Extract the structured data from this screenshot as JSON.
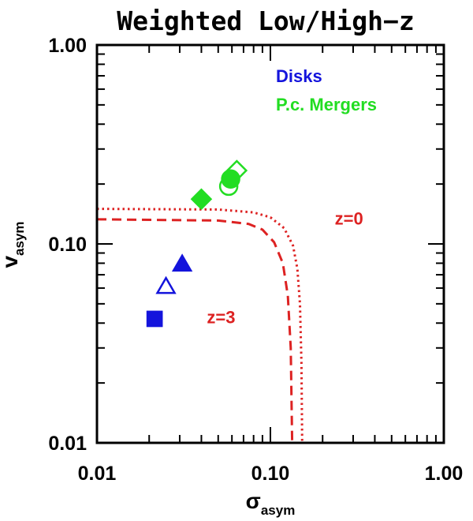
{
  "chart_data": {
    "type": "scatter",
    "title": "Weighted Low/High−z",
    "xlabel": {
      "symbol": "σ",
      "subscript": "asym"
    },
    "ylabel": {
      "symbol": "v",
      "subscript": "asym"
    },
    "x_scale": "log",
    "y_scale": "log",
    "xlim": [
      0.01,
      1.0
    ],
    "ylim": [
      0.01,
      1.0
    ],
    "x_tick_labels": [
      {
        "value": 0.01,
        "label": "0.01"
      },
      {
        "value": 0.1,
        "label": "0.10"
      },
      {
        "value": 1.0,
        "label": "1.00"
      }
    ],
    "y_tick_labels": [
      {
        "value": 0.01,
        "label": "0.01"
      },
      {
        "value": 0.1,
        "label": "0.10"
      },
      {
        "value": 1.0,
        "label": "1.00"
      }
    ],
    "grid": false,
    "legend_position": "top-right",
    "series": [
      {
        "name": "Disks",
        "color": "#1414dc",
        "points": [
          {
            "x": 0.0215,
            "y": 0.042,
            "marker": "square",
            "filled": false
          },
          {
            "x": 0.0215,
            "y": 0.042,
            "marker": "square",
            "filled": true
          },
          {
            "x": 0.025,
            "y": 0.061,
            "marker": "triangle",
            "filled": false
          },
          {
            "x": 0.031,
            "y": 0.079,
            "marker": "triangle",
            "filled": true
          }
        ]
      },
      {
        "name": "P.c. Mergers",
        "color": "#22dd22",
        "points": [
          {
            "x": 0.04,
            "y": 0.168,
            "marker": "diamond",
            "filled": true
          },
          {
            "x": 0.0575,
            "y": 0.195,
            "marker": "circle",
            "filled": false
          },
          {
            "x": 0.059,
            "y": 0.212,
            "marker": "circle",
            "filled": true
          },
          {
            "x": 0.064,
            "y": 0.234,
            "marker": "diamond",
            "filled": false
          }
        ]
      }
    ],
    "curves": [
      {
        "label": "z=0",
        "color": "#dd2222",
        "style": "dotted",
        "label_x": 0.235,
        "label_y": 0.125,
        "points": [
          [
            0.01,
            0.15
          ],
          [
            0.05,
            0.149
          ],
          [
            0.08,
            0.144
          ],
          [
            0.1,
            0.136
          ],
          [
            0.12,
            0.12
          ],
          [
            0.135,
            0.098
          ],
          [
            0.143,
            0.075
          ],
          [
            0.148,
            0.05
          ],
          [
            0.151,
            0.025
          ],
          [
            0.1525,
            0.01
          ]
        ]
      },
      {
        "label": "z=3",
        "color": "#dd2222",
        "style": "dashed",
        "label_x": 0.043,
        "label_y": 0.04,
        "points": [
          [
            0.01,
            0.133
          ],
          [
            0.05,
            0.131
          ],
          [
            0.075,
            0.126
          ],
          [
            0.09,
            0.118
          ],
          [
            0.105,
            0.102
          ],
          [
            0.118,
            0.08
          ],
          [
            0.126,
            0.055
          ],
          [
            0.131,
            0.03
          ],
          [
            0.1335,
            0.01
          ]
        ]
      }
    ]
  }
}
